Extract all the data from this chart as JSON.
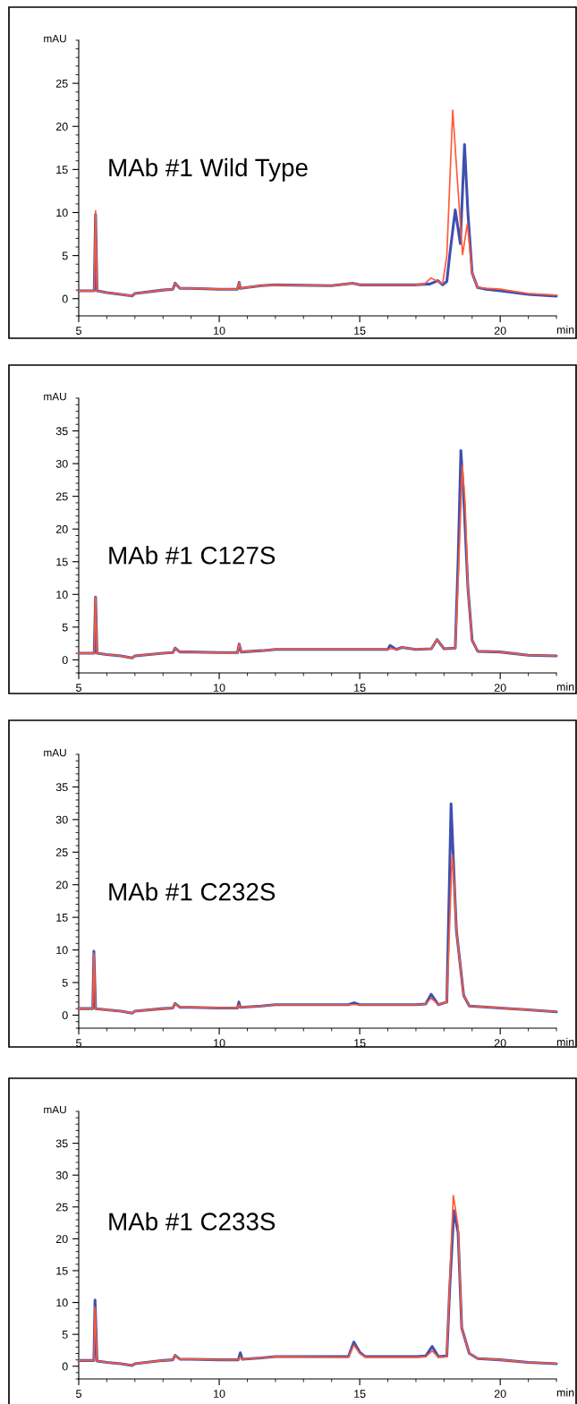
{
  "chart_data": [
    {
      "type": "line",
      "title": "MAb #1 Wild Type",
      "xlabel": "min",
      "ylabel": "mAU",
      "xlim": [
        5,
        22
      ],
      "ylim": [
        -2,
        30
      ],
      "xticks": [
        5,
        10,
        15,
        20
      ],
      "yticks": [
        0,
        5,
        10,
        15,
        20,
        25
      ],
      "grid": false,
      "marker": "none",
      "line_style": "solid",
      "series": [
        {
          "color": "#3f4fb0",
          "x": [
            5.0,
            5.5,
            5.55,
            5.6,
            5.65,
            6.0,
            6.5,
            6.9,
            7.0,
            8.0,
            8.35,
            8.43,
            8.6,
            9.0,
            10.0,
            10.65,
            10.71,
            10.75,
            11.5,
            12.0,
            14.0,
            14.75,
            15.0,
            17.0,
            17.5,
            17.78,
            17.95,
            18.1,
            18.2,
            18.4,
            18.58,
            18.73,
            18.85,
            19.0,
            19.19,
            19.5,
            20.0,
            21.0,
            22.0
          ],
          "values": [
            0.9,
            0.9,
            0.9,
            9.8,
            0.9,
            0.7,
            0.5,
            0.3,
            0.6,
            1.0,
            1.1,
            1.8,
            1.2,
            1.2,
            1.1,
            1.1,
            1.9,
            1.2,
            1.5,
            1.6,
            1.5,
            1.8,
            1.6,
            1.6,
            1.7,
            2.1,
            1.6,
            2.0,
            5.0,
            10.3,
            6.4,
            17.9,
            10.0,
            3.0,
            1.3,
            1.1,
            0.9,
            0.5,
            0.3
          ]
        },
        {
          "color": "#ff5a36",
          "x": [
            5.0,
            5.5,
            5.55,
            5.6,
            5.65,
            6.0,
            6.5,
            6.9,
            7.0,
            8.0,
            8.35,
            8.43,
            8.6,
            9.0,
            10.0,
            10.65,
            10.71,
            10.75,
            11.5,
            12.0,
            14.0,
            14.75,
            15.0,
            17.0,
            17.3,
            17.54,
            17.78,
            17.95,
            18.1,
            18.31,
            18.45,
            18.66,
            18.83,
            19.0,
            19.19,
            19.5,
            20.0,
            21.0,
            22.0
          ],
          "values": [
            0.9,
            0.9,
            0.9,
            10.2,
            0.9,
            0.7,
            0.5,
            0.3,
            0.6,
            1.0,
            1.1,
            1.8,
            1.2,
            1.2,
            1.1,
            1.1,
            1.9,
            1.2,
            1.5,
            1.6,
            1.5,
            1.8,
            1.6,
            1.6,
            1.7,
            2.4,
            2.0,
            1.7,
            5.0,
            21.9,
            15.0,
            5.1,
            8.7,
            3.0,
            1.3,
            1.2,
            1.1,
            0.6,
            0.4
          ]
        }
      ]
    },
    {
      "type": "line",
      "title": "MAb #1 C127S",
      "xlabel": "min",
      "ylabel": "mAU",
      "xlim": [
        5,
        22
      ],
      "ylim": [
        -2,
        40
      ],
      "xticks": [
        5,
        10,
        15,
        20
      ],
      "yticks": [
        0,
        5,
        10,
        15,
        20,
        25,
        30,
        35
      ],
      "grid": false,
      "marker": "none",
      "line_style": "solid",
      "series": [
        {
          "color": "#3f4fb0",
          "x": [
            5.0,
            5.5,
            5.55,
            5.6,
            5.65,
            6.0,
            6.5,
            6.9,
            7.0,
            8.0,
            8.35,
            8.43,
            8.6,
            9.0,
            10.0,
            10.65,
            10.71,
            10.78,
            11.5,
            12.0,
            15.0,
            16.0,
            16.08,
            16.3,
            16.5,
            17.0,
            17.55,
            17.75,
            18.0,
            18.4,
            18.5,
            18.6,
            18.7,
            18.85,
            19.0,
            19.2,
            20.0,
            21.0,
            22.0
          ],
          "values": [
            1.0,
            1.0,
            1.0,
            9.6,
            1.0,
            0.8,
            0.6,
            0.3,
            0.6,
            1.0,
            1.1,
            1.8,
            1.2,
            1.2,
            1.1,
            1.1,
            2.4,
            1.2,
            1.4,
            1.6,
            1.6,
            1.6,
            2.2,
            1.6,
            1.9,
            1.6,
            1.7,
            3.1,
            1.7,
            1.8,
            15.0,
            32.0,
            25.0,
            11.0,
            3.0,
            1.3,
            1.2,
            0.7,
            0.6
          ]
        },
        {
          "color": "#ff5a36",
          "x": [
            5.0,
            5.5,
            5.55,
            5.6,
            5.65,
            6.0,
            6.5,
            6.9,
            7.0,
            8.0,
            8.35,
            8.43,
            8.6,
            9.0,
            10.0,
            10.65,
            10.71,
            10.78,
            11.5,
            12.0,
            15.0,
            16.0,
            16.08,
            16.3,
            16.5,
            17.0,
            17.55,
            17.75,
            18.0,
            18.4,
            18.52,
            18.65,
            18.75,
            18.85,
            19.0,
            19.2,
            20.0,
            21.0,
            22.0
          ],
          "values": [
            1.0,
            1.0,
            1.0,
            9.6,
            1.0,
            0.8,
            0.6,
            0.3,
            0.6,
            1.0,
            1.1,
            1.8,
            1.2,
            1.2,
            1.1,
            1.1,
            2.4,
            1.2,
            1.4,
            1.6,
            1.6,
            1.6,
            1.7,
            1.6,
            1.9,
            1.6,
            1.7,
            3.1,
            1.7,
            1.8,
            14.0,
            29.7,
            24.0,
            11.0,
            3.0,
            1.3,
            1.2,
            0.7,
            0.6
          ]
        }
      ]
    },
    {
      "type": "line",
      "title": "MAb #1 C232S",
      "xlabel": "min",
      "ylabel": "mAU",
      "xlim": [
        5,
        22
      ],
      "ylim": [
        -2,
        40
      ],
      "xticks": [
        5,
        10,
        15,
        20
      ],
      "yticks": [
        0,
        5,
        10,
        15,
        20,
        25,
        30,
        35
      ],
      "grid": false,
      "marker": "none",
      "line_style": "solid",
      "series": [
        {
          "color": "#3f4fb0",
          "x": [
            5.0,
            5.45,
            5.5,
            5.54,
            5.6,
            6.0,
            6.5,
            6.9,
            7.0,
            8.0,
            8.35,
            8.43,
            8.6,
            9.0,
            10.0,
            10.65,
            10.7,
            10.75,
            11.5,
            12.0,
            14.6,
            14.8,
            15.0,
            17.0,
            17.35,
            17.54,
            17.8,
            18.1,
            18.25,
            18.35,
            18.44,
            18.7,
            18.9,
            20.0,
            21.0,
            22.0
          ],
          "values": [
            1.0,
            1.0,
            1.0,
            9.8,
            1.0,
            0.8,
            0.6,
            0.3,
            0.6,
            1.0,
            1.1,
            1.8,
            1.2,
            1.2,
            1.1,
            1.1,
            2.0,
            1.2,
            1.4,
            1.6,
            1.6,
            1.9,
            1.6,
            1.6,
            1.7,
            3.2,
            1.6,
            2.0,
            32.4,
            22.0,
            13.0,
            3.0,
            1.4,
            1.1,
            0.8,
            0.5
          ]
        },
        {
          "color": "#ff5a36",
          "x": [
            5.0,
            5.45,
            5.5,
            5.54,
            5.6,
            6.0,
            6.5,
            6.9,
            7.0,
            8.0,
            8.35,
            8.43,
            8.6,
            9.0,
            10.0,
            10.65,
            10.7,
            10.75,
            11.5,
            12.0,
            14.6,
            14.8,
            15.0,
            17.0,
            17.35,
            17.54,
            17.8,
            18.1,
            18.29,
            18.38,
            18.44,
            18.7,
            18.9,
            20.0,
            21.0,
            22.0
          ],
          "values": [
            1.0,
            1.0,
            1.0,
            9.5,
            1.0,
            0.8,
            0.6,
            0.3,
            0.6,
            1.0,
            1.1,
            1.8,
            1.2,
            1.2,
            1.1,
            1.1,
            1.6,
            1.2,
            1.4,
            1.6,
            1.6,
            1.6,
            1.6,
            1.6,
            1.7,
            2.6,
            1.6,
            2.0,
            24.6,
            19.0,
            13.0,
            3.0,
            1.4,
            1.1,
            0.8,
            0.5
          ]
        }
      ]
    },
    {
      "type": "line",
      "title": "MAb #1 C233S",
      "xlabel": "min",
      "ylabel": "mAU",
      "xlim": [
        5,
        22
      ],
      "ylim": [
        -2,
        40
      ],
      "xticks": [
        5,
        10,
        15,
        20
      ],
      "yticks": [
        0,
        5,
        10,
        15,
        20,
        25,
        30,
        35
      ],
      "grid": false,
      "marker": "none",
      "line_style": "solid",
      "series": [
        {
          "color": "#3f4fb0",
          "x": [
            5.0,
            5.5,
            5.54,
            5.58,
            5.65,
            6.0,
            6.5,
            6.9,
            7.0,
            8.0,
            8.35,
            8.43,
            8.6,
            9.0,
            10.0,
            10.68,
            10.75,
            10.82,
            11.5,
            12.0,
            14.6,
            14.79,
            15.0,
            15.2,
            17.0,
            17.35,
            17.58,
            17.8,
            18.1,
            18.2,
            18.35,
            18.5,
            18.63,
            18.9,
            19.2,
            20.0,
            21.0,
            22.0
          ],
          "values": [
            0.9,
            0.9,
            0.9,
            10.4,
            0.8,
            0.6,
            0.4,
            0.1,
            0.4,
            0.9,
            1.0,
            1.7,
            1.1,
            1.1,
            1.0,
            1.0,
            2.1,
            1.1,
            1.3,
            1.5,
            1.5,
            3.8,
            2.2,
            1.5,
            1.5,
            1.6,
            3.1,
            1.5,
            1.6,
            12.0,
            24.4,
            21.0,
            6.0,
            2.0,
            1.2,
            1.0,
            0.6,
            0.4
          ]
        },
        {
          "color": "#ff5a36",
          "x": [
            5.0,
            5.5,
            5.54,
            5.58,
            5.65,
            6.0,
            6.5,
            6.9,
            7.0,
            8.0,
            8.35,
            8.43,
            8.6,
            9.0,
            10.0,
            10.68,
            10.75,
            10.82,
            11.5,
            12.0,
            14.6,
            14.79,
            15.0,
            15.2,
            17.0,
            17.35,
            17.58,
            17.8,
            18.1,
            18.2,
            18.33,
            18.5,
            18.63,
            18.9,
            19.2,
            20.0,
            21.0,
            22.0
          ],
          "values": [
            0.9,
            0.9,
            0.9,
            9.3,
            0.8,
            0.6,
            0.4,
            0.1,
            0.4,
            0.9,
            1.0,
            1.7,
            1.1,
            1.1,
            1.0,
            1.0,
            1.5,
            1.1,
            1.3,
            1.5,
            1.4,
            3.3,
            2.0,
            1.4,
            1.4,
            1.5,
            2.4,
            1.4,
            1.5,
            13.0,
            26.8,
            22.0,
            6.0,
            2.0,
            1.2,
            1.0,
            0.6,
            0.4
          ]
        }
      ]
    }
  ]
}
